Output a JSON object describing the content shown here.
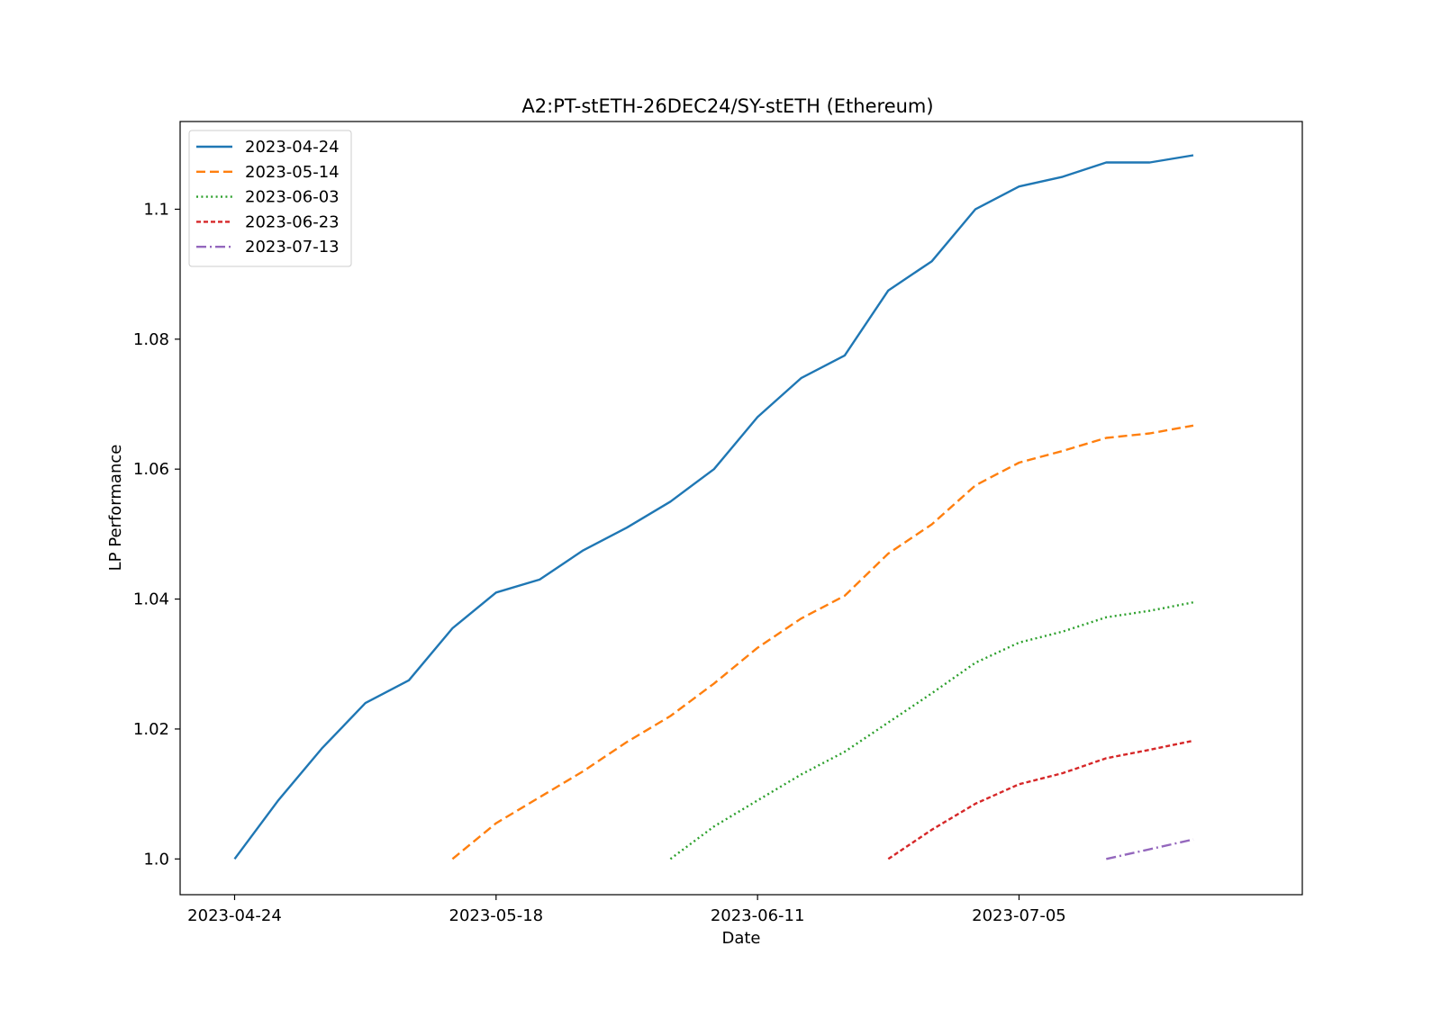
{
  "chart_data": {
    "type": "line",
    "title": "A2:PT-stETH-26DEC24/SY-stETH (Ethereum)",
    "xlabel": "Date",
    "ylabel": "LP Performance",
    "xlim": [
      "2023-04-19",
      "2023-07-31"
    ],
    "ylim": [
      0.9945,
      1.1135
    ],
    "x_ticks": [
      "2023-04-24",
      "2023-05-18",
      "2023-06-11",
      "2023-07-05"
    ],
    "y_ticks": [
      1.0,
      1.02,
      1.04,
      1.06,
      1.08,
      1.1
    ],
    "y_tick_labels": [
      "1.0",
      "1.02",
      "1.04",
      "1.06",
      "1.08",
      "1.1"
    ],
    "grid": false,
    "legend_position": "top-left",
    "series": [
      {
        "name": "2023-04-24",
        "color": "#1f77b4",
        "dash": "solid",
        "x": [
          "2023-04-24",
          "2023-04-28",
          "2023-05-02",
          "2023-05-06",
          "2023-05-10",
          "2023-05-14",
          "2023-05-18",
          "2023-05-22",
          "2023-05-26",
          "2023-05-30",
          "2023-06-03",
          "2023-06-07",
          "2023-06-11",
          "2023-06-15",
          "2023-06-19",
          "2023-06-23",
          "2023-06-27",
          "2023-07-01",
          "2023-07-05",
          "2023-07-09",
          "2023-07-13",
          "2023-07-17",
          "2023-07-21"
        ],
        "y": [
          1.0,
          1.009,
          1.017,
          1.024,
          1.0275,
          1.0355,
          1.041,
          1.043,
          1.0475,
          1.051,
          1.055,
          1.06,
          1.068,
          1.074,
          1.0775,
          1.0875,
          1.092,
          1.1,
          1.1035,
          1.105,
          1.1072,
          1.1072,
          1.1083
        ]
      },
      {
        "name": "2023-05-14",
        "color": "#ff7f0e",
        "dash": "dashed",
        "x": [
          "2023-05-14",
          "2023-05-18",
          "2023-05-22",
          "2023-05-26",
          "2023-05-30",
          "2023-06-03",
          "2023-06-07",
          "2023-06-11",
          "2023-06-15",
          "2023-06-19",
          "2023-06-23",
          "2023-06-27",
          "2023-07-01",
          "2023-07-05",
          "2023-07-09",
          "2023-07-13",
          "2023-07-17",
          "2023-07-21"
        ],
        "y": [
          1.0,
          1.0055,
          1.0095,
          1.0135,
          1.018,
          1.022,
          1.027,
          1.0325,
          1.037,
          1.0405,
          1.047,
          1.0515,
          1.0575,
          1.061,
          1.0628,
          1.0648,
          1.0655,
          1.0667
        ]
      },
      {
        "name": "2023-06-03",
        "color": "#2ca02c",
        "dash": "dotted",
        "x": [
          "2023-06-03",
          "2023-06-07",
          "2023-06-11",
          "2023-06-15",
          "2023-06-19",
          "2023-06-23",
          "2023-06-27",
          "2023-07-01",
          "2023-07-05",
          "2023-07-09",
          "2023-07-13",
          "2023-07-17",
          "2023-07-21"
        ],
        "y": [
          1.0,
          1.005,
          1.009,
          1.013,
          1.0165,
          1.021,
          1.0255,
          1.0302,
          1.0333,
          1.035,
          1.0372,
          1.0382,
          1.0395
        ]
      },
      {
        "name": "2023-06-23",
        "color": "#d62728",
        "dash": "dashdense",
        "x": [
          "2023-06-23",
          "2023-06-27",
          "2023-07-01",
          "2023-07-05",
          "2023-07-09",
          "2023-07-13",
          "2023-07-17",
          "2023-07-21"
        ],
        "y": [
          1.0,
          1.0045,
          1.0085,
          1.0115,
          1.0132,
          1.0155,
          1.0168,
          1.0182
        ]
      },
      {
        "name": "2023-07-13",
        "color": "#9467bd",
        "dash": "dashdot",
        "x": [
          "2023-07-13",
          "2023-07-17",
          "2023-07-21"
        ],
        "y": [
          1.0,
          1.0015,
          1.003
        ]
      }
    ]
  }
}
